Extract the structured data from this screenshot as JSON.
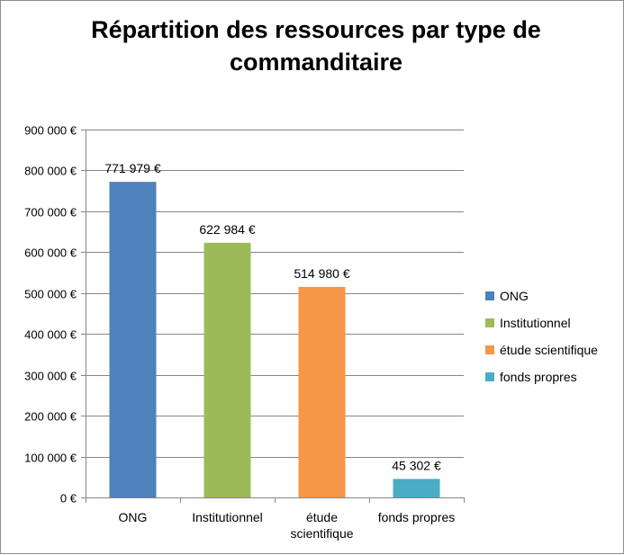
{
  "chart_data": {
    "type": "bar",
    "title": "Répartition des ressources par type de commanditaire",
    "categories": [
      "ONG",
      "Institutionnel",
      "étude scientifique",
      "fonds propres"
    ],
    "category_lines": [
      [
        "ONG"
      ],
      [
        "Institutionnel"
      ],
      [
        "étude",
        "scientifique"
      ],
      [
        "fonds propres"
      ]
    ],
    "values": [
      771979,
      622984,
      514980,
      45302
    ],
    "data_labels": [
      "771 979 €",
      "622 984 €",
      "514 980 €",
      "45 302 €"
    ],
    "colors": [
      "#4f81bd",
      "#9bbb59",
      "#f79646",
      "#4bacc6"
    ],
    "ylim": [
      0,
      900000
    ],
    "y_ticks": [
      0,
      100000,
      200000,
      300000,
      400000,
      500000,
      600000,
      700000,
      800000,
      900000
    ],
    "y_tick_labels": [
      "0 €",
      "100 000 €",
      "200 000 €",
      "300 000 €",
      "400 000 €",
      "500 000 €",
      "600 000 €",
      "700 000 €",
      "800 000 €",
      "900 000 €"
    ],
    "grid": true,
    "legend": {
      "placement": "right",
      "entries": [
        "ONG",
        "Institutionnel",
        "étude scientifique",
        "fonds propres"
      ]
    },
    "xlabel": "",
    "ylabel": ""
  }
}
